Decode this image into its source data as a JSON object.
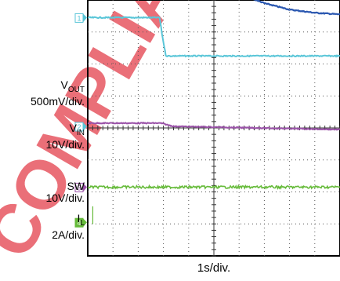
{
  "chart_data": {
    "type": "line",
    "x_label": "1s/div.",
    "grid": true,
    "divisions": {
      "x": 10,
      "y": 8
    },
    "watermark_text": "COMPLIANT",
    "colors": {
      "trace1": "#2a57b0",
      "trace2": "#5ac6d8",
      "trace3": "#9a52a8",
      "trace4": "#66bb3a",
      "grid": "#555555",
      "watermark": "#e8606a"
    },
    "channels": [
      {
        "id": "trace1",
        "marker": "",
        "name_main": "",
        "name_sub": "",
        "scale": ""
      },
      {
        "id": "trace2",
        "marker": "1",
        "name_main": "V",
        "name_sub": "OUT",
        "scale": "500mV/div."
      },
      {
        "id": "trace3",
        "marker": "2",
        "name_main": "V",
        "name_sub": "IN",
        "scale": "10V/div."
      },
      {
        "id": "trace4",
        "marker": "3",
        "name_main": "SW",
        "name_sub": "",
        "scale": "10V/div."
      },
      {
        "id": "trace5",
        "marker": "4",
        "name_main": "I",
        "name_sub": "L",
        "scale": "2A/div."
      }
    ],
    "series": [
      {
        "id": "trace1",
        "x_div": [
          0,
          2.9,
          3.3,
          4.0,
          5.0,
          6.0,
          7.0,
          8.0,
          9.0,
          10.0
        ],
        "y_div": [
          7.05,
          7.05,
          6.6,
          5.65,
          4.75,
          4.2,
          3.9,
          3.7,
          3.6,
          3.55
        ]
      },
      {
        "id": "trace2",
        "x_div": [
          0,
          2.85,
          2.95,
          3.1,
          10.0
        ],
        "y_div": [
          3.45,
          3.45,
          2.9,
          2.25,
          2.25
        ]
      },
      {
        "id": "trace3",
        "x_div": [
          0,
          2.9,
          3.4,
          10.0
        ],
        "y_div": [
          0.15,
          0.15,
          0.05,
          -0.05
        ]
      },
      {
        "id": "trace4",
        "x_div": [
          0,
          10.0
        ],
        "y_div": [
          -1.85,
          -1.85
        ]
      }
    ]
  }
}
